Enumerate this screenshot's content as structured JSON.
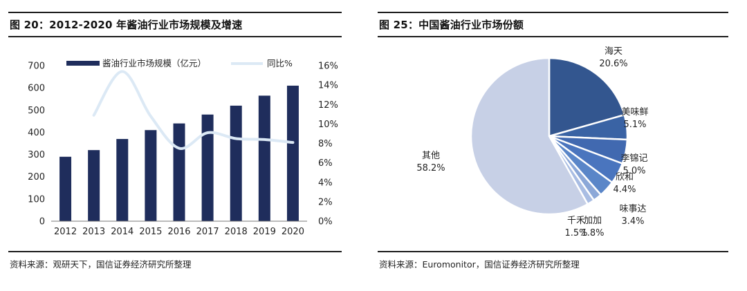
{
  "left_panel": {
    "title": "图 20：2012-2020 年酱油行业市场规模及增速",
    "source": "资料来源：观研天下，国信证券经济研究所整理"
  },
  "right_panel": {
    "title": "图 25：中国酱油行业市场份额",
    "source": "资料来源：Euromonitor，国信证券经济研究所整理"
  },
  "colors": {
    "bar": "#1f2d5c",
    "line": "#dce9f5",
    "pie": [
      "#33568f",
      "#3a63a4",
      "#4169b0",
      "#4a75be",
      "#5a86c8",
      "#8ca8d8",
      "#a9bde3",
      "#c7d0e6"
    ]
  },
  "chart_data": [
    {
      "type": "bar",
      "categories": [
        "2012",
        "2013",
        "2014",
        "2015",
        "2016",
        "2017",
        "2018",
        "2019",
        "2020"
      ],
      "series": [
        {
          "name": "酱油行业市场规模（亿元）",
          "axis": "left",
          "values": [
            290,
            320,
            370,
            410,
            440,
            480,
            520,
            565,
            610
          ]
        },
        {
          "name": "同比%",
          "type": "line",
          "axis": "right",
          "values": [
            null,
            10.9,
            15.4,
            10.8,
            7.5,
            9.1,
            8.5,
            8.4,
            8.1
          ]
        }
      ],
      "ylim": [
        0,
        700
      ],
      "yticks": [
        "0",
        "100",
        "200",
        "300",
        "400",
        "500",
        "600",
        "700"
      ],
      "y2lim": [
        0,
        16
      ],
      "y2ticks": [
        "0%",
        "2%",
        "4%",
        "6%",
        "8%",
        "10%",
        "12%",
        "14%",
        "16%"
      ],
      "legend_position": "top"
    },
    {
      "type": "pie",
      "slices": [
        {
          "label": "海天",
          "value": 20.6,
          "value_label": "20.6%"
        },
        {
          "label": "美味鲜",
          "value": 5.1,
          "value_label": "5.1%"
        },
        {
          "label": "李锦记",
          "value": 5.0,
          "value_label": "5.0%"
        },
        {
          "label": "欣和",
          "value": 4.4,
          "value_label": "4.4%"
        },
        {
          "label": "味事达",
          "value": 3.4,
          "value_label": "3.4%"
        },
        {
          "label": "加加",
          "value": 1.8,
          "value_label": "1.8%"
        },
        {
          "label": "千禾",
          "value": 1.5,
          "value_label": "1.5%"
        },
        {
          "label": "其他",
          "value": 58.2,
          "value_label": "58.2%"
        }
      ]
    }
  ]
}
